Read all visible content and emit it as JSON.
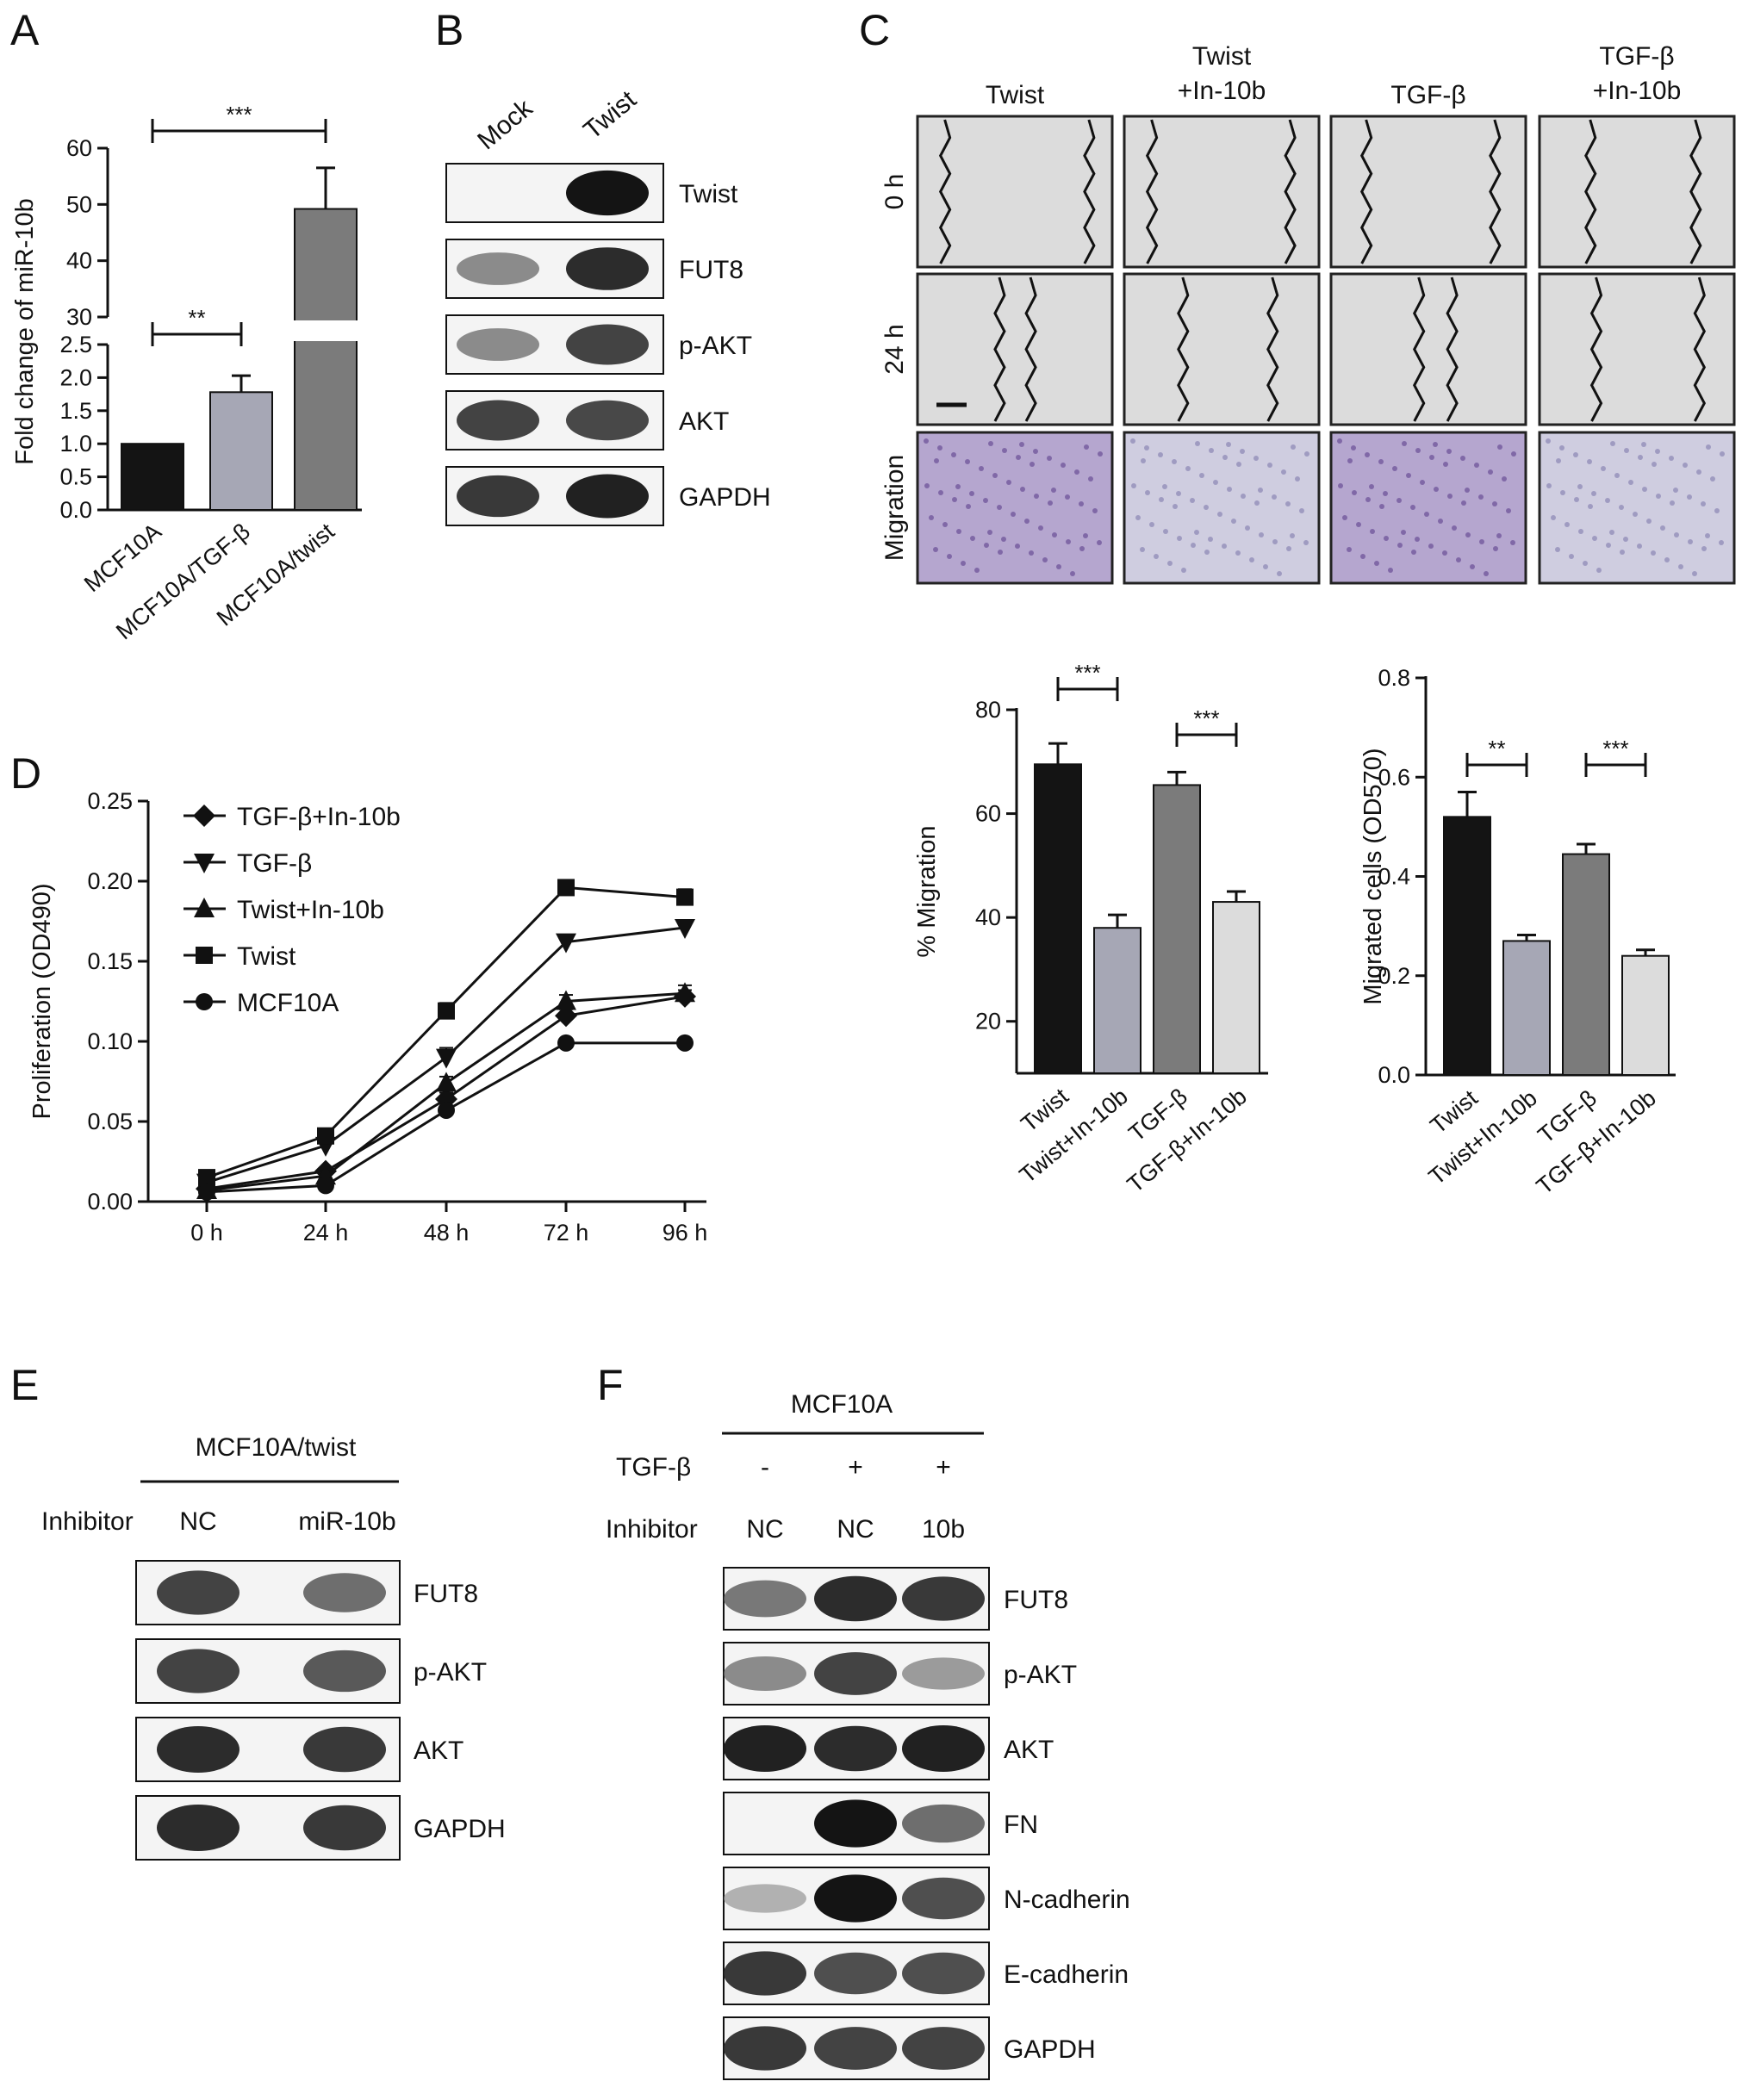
{
  "panel_letters": [
    "A",
    "B",
    "C",
    "D",
    "E",
    "F"
  ],
  "chart_data": [
    {
      "id": "A",
      "type": "bar",
      "title": "",
      "categories": [
        "MCF10A",
        "MCF10A/TGF-β",
        "MCF10A/twist"
      ],
      "values": [
        1.0,
        1.78,
        49.2
      ],
      "errors": [
        0,
        0.25,
        7.3
      ],
      "colors": [
        "#141414",
        "#a6a7b5",
        "#7b7b7b"
      ],
      "xlabel": "",
      "ylabel": "Fold change of miR-10b",
      "axis_break": {
        "lower_range": [
          0,
          2.5
        ],
        "upper_range": [
          30,
          60
        ]
      },
      "yticks_lower": [
        "0.0",
        "0.5",
        "1.0",
        "1.5",
        "2.0",
        "2.5"
      ],
      "yticks_upper": [
        "30",
        "40",
        "50",
        "60"
      ],
      "significance": [
        {
          "from": 0,
          "to": 1,
          "label": "**"
        },
        {
          "from": 0,
          "to": 2,
          "label": "***"
        }
      ]
    },
    {
      "id": "D",
      "type": "line",
      "title": "",
      "x": [
        "0 h",
        "24 h",
        "48 h",
        "72 h",
        "96 h"
      ],
      "ylabel": "Proliferation (OD490)",
      "xlabel": "",
      "ylim": [
        0,
        0.25
      ],
      "yticks": [
        "0.00",
        "0.05",
        "0.10",
        "0.15",
        "0.20",
        "0.25"
      ],
      "legend_position": "top-left",
      "series": [
        {
          "name": "TGF-β+In-10b",
          "marker": "diamond",
          "values": [
            0.008,
            0.019,
            0.064,
            0.116,
            0.128
          ],
          "errors": [
            0.002,
            0.002,
            0.004,
            0.004,
            0.004
          ]
        },
        {
          "name": "TGF-β",
          "marker": "triangle-down",
          "values": [
            0.012,
            0.035,
            0.09,
            0.162,
            0.171
          ],
          "errors": [
            0.002,
            0.003,
            0.006,
            0.003,
            0.004
          ]
        },
        {
          "name": "Twist+In-10b",
          "marker": "triangle-up",
          "values": [
            0.007,
            0.016,
            0.074,
            0.125,
            0.13
          ],
          "errors": [
            0.002,
            0.003,
            0.004,
            0.004,
            0.005
          ]
        },
        {
          "name": "Twist",
          "marker": "square",
          "values": [
            0.015,
            0.041,
            0.119,
            0.196,
            0.19
          ],
          "errors": [
            0.002,
            0.003,
            0.005,
            0.002,
            0.005
          ]
        },
        {
          "name": "MCF10A",
          "marker": "circle",
          "values": [
            0.006,
            0.01,
            0.057,
            0.099,
            0.099
          ],
          "errors": [
            0.001,
            0.002,
            0.003,
            0.002,
            0.002
          ]
        }
      ]
    },
    {
      "id": "C-migration",
      "type": "bar",
      "title": "",
      "categories": [
        "Twist",
        "Twist+In-10b",
        "TGF-β",
        "TGF-β+In-10b"
      ],
      "values": [
        69.5,
        38,
        65.5,
        43
      ],
      "errors": [
        4,
        2.5,
        2.5,
        2
      ],
      "colors": [
        "#141414",
        "#a6a7b5",
        "#7b7b7b",
        "#dcdcdc"
      ],
      "ylabel": "% Migration",
      "xlabel": "",
      "ylim": [
        10,
        80
      ],
      "yticks": [
        "20",
        "40",
        "60",
        "80"
      ],
      "significance": [
        {
          "from": 0,
          "to": 1,
          "label": "***"
        },
        {
          "from": 2,
          "to": 3,
          "label": "***"
        }
      ]
    },
    {
      "id": "C-od570",
      "type": "bar",
      "title": "",
      "categories": [
        "Twist",
        "Twist+In-10b",
        "TGF-β",
        "TGF-β+In-10b"
      ],
      "values": [
        0.52,
        0.27,
        0.445,
        0.24
      ],
      "errors": [
        0.05,
        0.012,
        0.02,
        0.012
      ],
      "colors": [
        "#141414",
        "#a6a7b5",
        "#7b7b7b",
        "#dcdcdc"
      ],
      "ylabel": "Migrated cells (OD570)",
      "xlabel": "",
      "ylim": [
        0,
        0.8
      ],
      "yticks": [
        "0.0",
        "0.2",
        "0.4",
        "0.6",
        "0.8"
      ],
      "significance": [
        {
          "from": 0,
          "to": 1,
          "label": "**"
        },
        {
          "from": 2,
          "to": 3,
          "label": "***"
        }
      ]
    }
  ],
  "blot_B": {
    "lanes": [
      "Mock",
      "Twist"
    ],
    "rows": [
      {
        "label": "Twist",
        "levels": [
          0.0,
          1.0
        ]
      },
      {
        "label": "FUT8",
        "levels": [
          0.45,
          0.9
        ]
      },
      {
        "label": "p-AKT",
        "levels": [
          0.45,
          0.8
        ]
      },
      {
        "label": "AKT",
        "levels": [
          0.8,
          0.78
        ]
      },
      {
        "label": "GAPDH",
        "levels": [
          0.85,
          0.95
        ]
      }
    ]
  },
  "micrographs_C": {
    "columns": [
      "Twist",
      "Twist\n+In-10b",
      "TGF-β",
      "TGF-β\n+In-10b"
    ],
    "rows": [
      "0 h",
      "24 h",
      "Migration"
    ]
  },
  "blot_E": {
    "group_header": "MCF10A/twist",
    "inhibitor_label": "Inhibitor",
    "lanes": [
      "NC",
      "miR-10b"
    ],
    "rows": [
      {
        "label": "FUT8",
        "levels": [
          0.8,
          0.6
        ]
      },
      {
        "label": "p-AKT",
        "levels": [
          0.8,
          0.7
        ]
      },
      {
        "label": "AKT",
        "levels": [
          0.9,
          0.85
        ]
      },
      {
        "label": "GAPDH",
        "levels": [
          0.9,
          0.85
        ]
      }
    ]
  },
  "blot_F": {
    "group_header": "MCF10A",
    "tgf_label": "TGF-β",
    "tgf_values": [
      "-",
      "+",
      "+"
    ],
    "inhibitor_label": "Inhibitor",
    "lanes": [
      "NC",
      "NC",
      "10b"
    ],
    "rows": [
      {
        "label": "FUT8",
        "levels": [
          0.55,
          0.9,
          0.85
        ]
      },
      {
        "label": "p-AKT",
        "levels": [
          0.45,
          0.8,
          0.35
        ]
      },
      {
        "label": "AKT",
        "levels": [
          0.95,
          0.9,
          0.95
        ]
      },
      {
        "label": "FN",
        "levels": [
          0.0,
          1.0,
          0.6
        ]
      },
      {
        "label": "N-cadherin",
        "levels": [
          0.2,
          1.0,
          0.75
        ]
      },
      {
        "label": "E-cadherin",
        "levels": [
          0.85,
          0.75,
          0.75
        ]
      },
      {
        "label": "GAPDH",
        "levels": [
          0.85,
          0.8,
          0.8
        ]
      }
    ]
  }
}
